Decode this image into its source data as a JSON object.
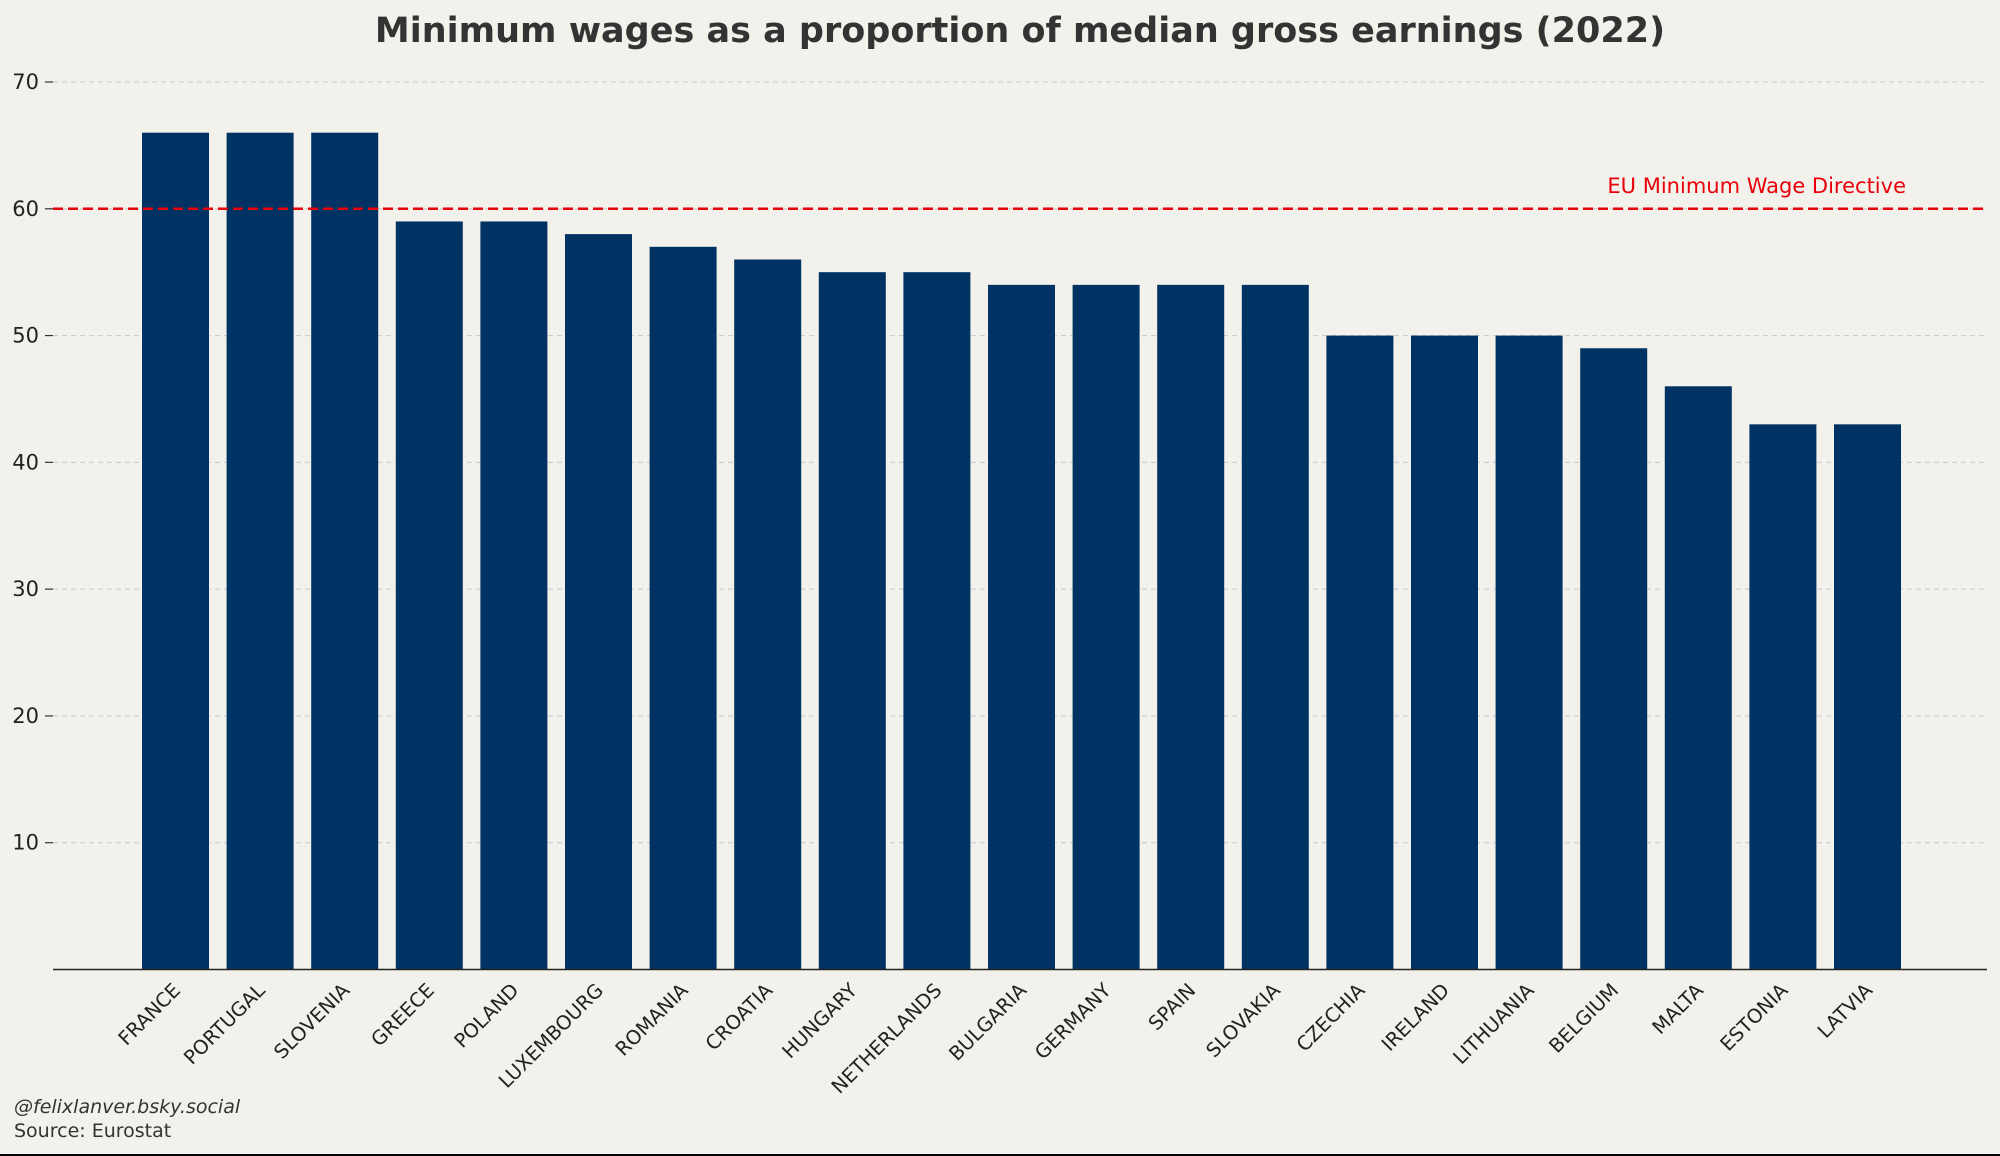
{
  "chart_data": {
    "type": "bar",
    "title": "Minimum wages as a proportion of median gross earnings (2022)",
    "xlabel": "",
    "ylabel": "",
    "ylim": [
      0,
      70
    ],
    "yticks": [
      10,
      20,
      30,
      40,
      50,
      60,
      70
    ],
    "grid": "horizontal dashed",
    "categories": [
      "FRANCE",
      "PORTUGAL",
      "SLOVENIA",
      "GREECE",
      "POLAND",
      "LUXEMBOURG",
      "ROMANIA",
      "CROATIA",
      "HUNGARY",
      "NETHERLANDS",
      "BULGARIA",
      "GERMANY",
      "SPAIN",
      "SLOVAKIA",
      "CZECHIA",
      "IRELAND",
      "LITHUANIA",
      "BELGIUM",
      "MALTA",
      "ESTONIA",
      "LATVIA"
    ],
    "values": [
      66,
      66,
      66,
      59,
      59,
      58,
      57,
      56,
      55,
      55,
      54,
      54,
      54,
      54,
      50,
      50,
      50,
      49,
      46,
      43,
      43
    ],
    "reference_line": {
      "value": 60,
      "label": "EU Minimum Wage Directive",
      "color": "#e8000b",
      "style": "dashed"
    },
    "bar_color": "#003264"
  },
  "footer": {
    "credit": "@felixlanver.bsky.social",
    "source": "Source: Eurostat"
  }
}
